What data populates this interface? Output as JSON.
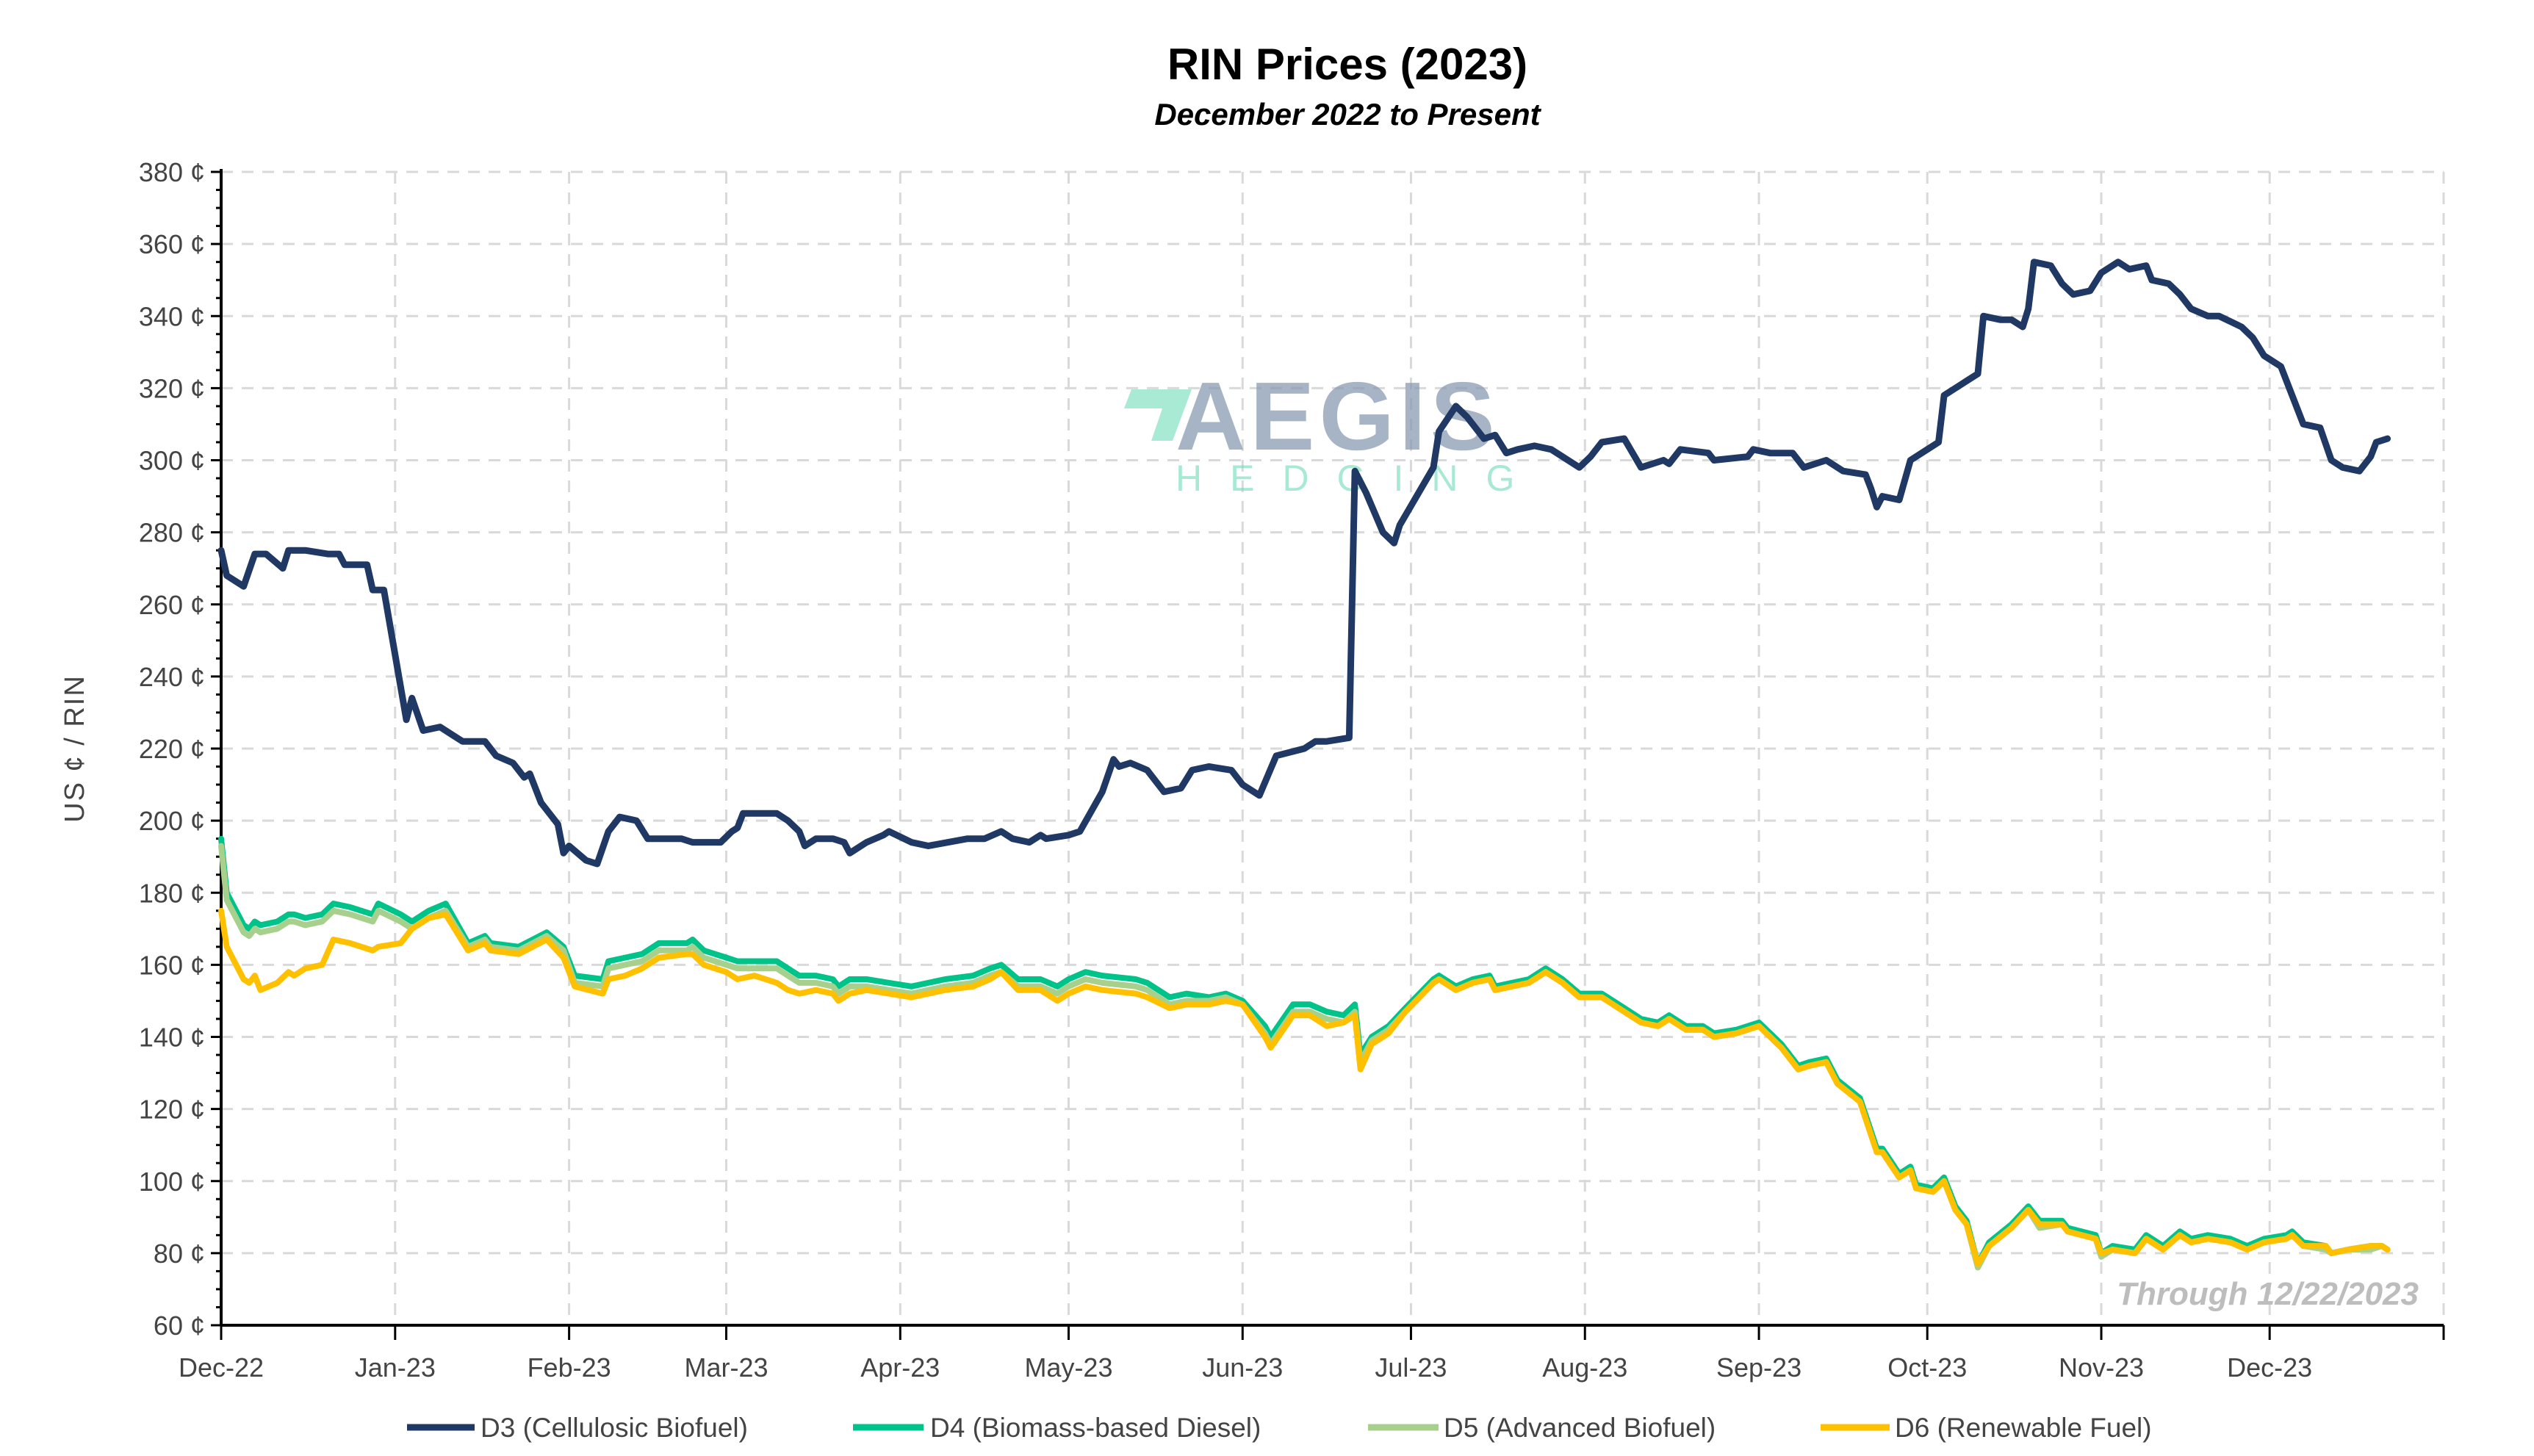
{
  "chart_data": {
    "type": "line",
    "title": "RIN Prices (2023)",
    "subtitle": "December 2022 to Present",
    "ylabel": "US ¢ / RIN",
    "xlabel": "",
    "note": "Through 12/22/2023",
    "xlim": [
      "2022-12-01",
      "2024-01-01"
    ],
    "ylim": [
      60,
      380
    ],
    "y_ticks": [
      60,
      80,
      100,
      120,
      140,
      160,
      180,
      200,
      220,
      240,
      260,
      280,
      300,
      320,
      340,
      360,
      380
    ],
    "y_tick_labels": [
      "60 ¢",
      "80 ¢",
      "100 ¢",
      "120 ¢",
      "140 ¢",
      "160 ¢",
      "180 ¢",
      "200 ¢",
      "220 ¢",
      "240 ¢",
      "260 ¢",
      "280 ¢",
      "300 ¢",
      "320 ¢",
      "340 ¢",
      "360 ¢",
      "380 ¢"
    ],
    "x_ticks": [
      "2022-12-01",
      "2023-01-01",
      "2023-02-01",
      "2023-03-01",
      "2023-04-01",
      "2023-05-01",
      "2023-06-01",
      "2023-07-01",
      "2023-08-01",
      "2023-09-01",
      "2023-10-01",
      "2023-11-01",
      "2023-12-01",
      "2024-01-01"
    ],
    "x_tick_labels": [
      "Dec-22",
      "Jan-23",
      "Feb-23",
      "Mar-23",
      "Apr-23",
      "May-23",
      "Jun-23",
      "Jul-23",
      "Aug-23",
      "Sep-23",
      "Oct-23",
      "Nov-23",
      "Dec-23",
      ""
    ],
    "grid": true,
    "legend_placement": "bottom",
    "watermark": {
      "text": "AEGIS",
      "sub": "HEDGING",
      "accent": "#6fdcb8"
    },
    "d3": {
      "name": "D3 (Cellulosic Biofuel)",
      "color": "#1f3864",
      "dates": [
        "2022-12-01",
        "2022-12-02",
        "2022-12-05",
        "2022-12-07",
        "2022-12-09",
        "2022-12-12",
        "2022-12-13",
        "2022-12-16",
        "2022-12-20",
        "2022-12-22",
        "2022-12-23",
        "2022-12-27",
        "2022-12-28",
        "2022-12-30",
        "2023-01-03",
        "2023-01-04",
        "2023-01-06",
        "2023-01-09",
        "2023-01-11",
        "2023-01-13",
        "2023-01-17",
        "2023-01-19",
        "2023-01-22",
        "2023-01-24",
        "2023-01-25",
        "2023-01-27",
        "2023-01-30",
        "2023-01-31",
        "2023-02-01",
        "2023-02-04",
        "2023-02-06",
        "2023-02-08",
        "2023-02-10",
        "2023-02-13",
        "2023-02-15",
        "2023-02-21",
        "2023-02-23",
        "2023-02-28",
        "2023-03-02",
        "2023-03-03",
        "2023-03-04",
        "2023-03-10",
        "2023-03-12",
        "2023-03-14",
        "2023-03-15",
        "2023-03-17",
        "2023-03-20",
        "2023-03-22",
        "2023-03-23",
        "2023-03-26",
        "2023-03-29",
        "2023-03-30",
        "2023-04-03",
        "2023-04-06",
        "2023-04-13",
        "2023-04-16",
        "2023-04-19",
        "2023-04-21",
        "2023-04-24",
        "2023-04-26",
        "2023-04-27",
        "2023-05-01",
        "2023-05-03",
        "2023-05-07",
        "2023-05-09",
        "2023-05-10",
        "2023-05-12",
        "2023-05-15",
        "2023-05-18",
        "2023-05-21",
        "2023-05-23",
        "2023-05-26",
        "2023-05-30",
        "2023-06-01",
        "2023-06-04",
        "2023-06-07",
        "2023-06-12",
        "2023-06-14",
        "2023-06-16",
        "2023-06-20",
        "2023-06-21",
        "2023-06-23",
        "2023-06-26",
        "2023-06-28",
        "2023-06-29",
        "2023-07-05",
        "2023-07-06",
        "2023-07-09",
        "2023-07-11",
        "2023-07-14",
        "2023-07-16",
        "2023-07-18",
        "2023-07-20",
        "2023-07-23",
        "2023-07-26",
        "2023-07-31",
        "2023-08-02",
        "2023-08-04",
        "2023-08-08",
        "2023-08-11",
        "2023-08-15",
        "2023-08-16",
        "2023-08-18",
        "2023-08-23",
        "2023-08-24",
        "2023-08-30",
        "2023-08-31",
        "2023-09-03",
        "2023-09-07",
        "2023-09-09",
        "2023-09-13",
        "2023-09-16",
        "2023-09-20",
        "2023-09-21",
        "2023-09-22",
        "2023-09-23",
        "2023-09-26",
        "2023-09-28",
        "2023-10-01",
        "2023-10-03",
        "2023-10-04",
        "2023-10-08",
        "2023-10-10",
        "2023-10-11",
        "2023-10-14",
        "2023-10-16",
        "2023-10-18",
        "2023-10-19",
        "2023-10-20",
        "2023-10-23",
        "2023-10-25",
        "2023-10-27",
        "2023-10-30",
        "2023-11-01",
        "2023-11-04",
        "2023-11-06",
        "2023-11-09",
        "2023-11-10",
        "2023-11-13",
        "2023-11-15",
        "2023-11-17",
        "2023-11-20",
        "2023-11-22",
        "2023-11-26",
        "2023-11-28",
        "2023-11-30",
        "2023-12-03",
        "2023-12-07",
        "2023-12-10",
        "2023-12-12",
        "2023-12-14",
        "2023-12-17",
        "2023-12-19",
        "2023-12-20",
        "2023-12-22"
      ],
      "values": [
        275,
        268,
        265,
        274,
        274,
        270,
        275,
        275,
        274,
        274,
        271,
        271,
        264,
        264,
        228,
        234,
        225,
        226,
        224,
        222,
        222,
        218,
        216,
        212,
        213,
        205,
        199,
        191,
        193,
        189,
        188,
        197,
        201,
        200,
        195,
        195,
        194,
        194,
        197,
        198,
        202,
        202,
        200,
        197,
        193,
        195,
        195,
        194,
        191,
        194,
        196,
        197,
        194,
        193,
        195,
        195,
        197,
        195,
        194,
        196,
        195,
        196,
        197,
        208,
        217,
        215,
        216,
        214,
        208,
        209,
        214,
        215,
        214,
        210,
        207,
        218,
        220,
        222,
        222,
        223,
        297,
        291,
        280,
        277,
        282,
        298,
        308,
        315,
        312,
        306,
        307,
        302,
        303,
        304,
        303,
        298,
        301,
        305,
        306,
        298,
        300,
        299,
        303,
        302,
        300,
        301,
        303,
        302,
        302,
        298,
        300,
        297,
        296,
        292,
        287,
        290,
        289,
        300,
        303,
        305,
        318,
        322,
        324,
        340,
        339,
        339,
        337,
        342,
        355,
        354,
        349,
        346,
        347,
        352,
        355,
        353,
        354,
        350,
        349,
        346,
        342,
        340,
        340,
        337,
        334,
        329,
        326,
        310,
        309,
        300,
        298,
        297,
        301,
        305,
        306
      ]
    },
    "lower_dates": [
      "2022-12-01",
      "2022-12-02",
      "2022-12-05",
      "2022-12-06",
      "2022-12-07",
      "2022-12-08",
      "2022-12-11",
      "2022-12-13",
      "2022-12-14",
      "2022-12-16",
      "2022-12-19",
      "2022-12-21",
      "2022-12-24",
      "2022-12-28",
      "2022-12-29",
      "2023-01-02",
      "2023-01-04",
      "2023-01-07",
      "2023-01-10",
      "2023-01-14",
      "2023-01-17",
      "2023-01-18",
      "2023-01-23",
      "2023-01-28",
      "2023-01-31",
      "2023-02-02",
      "2023-02-07",
      "2023-02-08",
      "2023-02-11",
      "2023-02-14",
      "2023-02-17",
      "2023-02-22",
      "2023-02-23",
      "2023-02-25",
      "2023-03-01",
      "2023-03-03",
      "2023-03-06",
      "2023-03-10",
      "2023-03-12",
      "2023-03-14",
      "2023-03-17",
      "2023-03-20",
      "2023-03-21",
      "2023-03-23",
      "2023-03-26",
      "2023-03-30",
      "2023-04-03",
      "2023-04-06",
      "2023-04-09",
      "2023-04-14",
      "2023-04-17",
      "2023-04-19",
      "2023-04-22",
      "2023-04-26",
      "2023-04-29",
      "2023-05-01",
      "2023-05-04",
      "2023-05-07",
      "2023-05-13",
      "2023-05-15",
      "2023-05-19",
      "2023-05-22",
      "2023-05-26",
      "2023-05-29",
      "2023-06-01",
      "2023-06-05",
      "2023-06-06",
      "2023-06-10",
      "2023-06-13",
      "2023-06-16",
      "2023-06-19",
      "2023-06-21",
      "2023-06-22",
      "2023-06-24",
      "2023-06-27",
      "2023-06-30",
      "2023-07-05",
      "2023-07-06",
      "2023-07-09",
      "2023-07-12",
      "2023-07-15",
      "2023-07-16",
      "2023-07-19",
      "2023-07-22",
      "2023-07-25",
      "2023-07-28",
      "2023-07-31",
      "2023-08-04",
      "2023-08-07",
      "2023-08-11",
      "2023-08-14",
      "2023-08-16",
      "2023-08-19",
      "2023-08-22",
      "2023-08-24",
      "2023-08-28",
      "2023-09-01",
      "2023-09-05",
      "2023-09-08",
      "2023-09-10",
      "2023-09-13",
      "2023-09-15",
      "2023-09-19",
      "2023-09-22",
      "2023-09-23",
      "2023-09-26",
      "2023-09-28",
      "2023-09-29",
      "2023-10-02",
      "2023-10-04",
      "2023-10-06",
      "2023-10-08",
      "2023-10-10",
      "2023-10-12",
      "2023-10-16",
      "2023-10-19",
      "2023-10-21",
      "2023-10-25",
      "2023-10-26",
      "2023-10-31",
      "2023-11-01",
      "2023-11-03",
      "2023-11-07",
      "2023-11-09",
      "2023-11-12",
      "2023-11-15",
      "2023-11-17",
      "2023-11-20",
      "2023-11-24",
      "2023-11-27",
      "2023-11-30",
      "2023-12-04",
      "2023-12-05",
      "2023-12-07",
      "2023-12-11",
      "2023-12-12",
      "2023-12-15",
      "2023-12-19",
      "2023-12-21",
      "2023-12-22"
    ],
    "d4": {
      "name": "D4 (Biomass-based Diesel)",
      "color": "#00c389",
      "values": [
        195,
        180,
        171,
        170,
        172,
        171,
        172,
        174,
        174,
        173,
        174,
        177,
        176,
        174,
        177,
        174,
        172,
        175,
        177,
        166,
        168,
        166,
        165,
        169,
        165,
        157,
        156,
        161,
        162,
        163,
        166,
        166,
        167,
        164,
        162,
        161,
        161,
        161,
        159,
        157,
        157,
        156,
        154,
        156,
        156,
        155,
        154,
        155,
        156,
        157,
        159,
        160,
        156,
        156,
        154,
        156,
        158,
        157,
        156,
        155,
        151,
        152,
        151,
        152,
        150,
        143,
        140,
        149,
        149,
        147,
        146,
        149,
        135,
        140,
        143,
        148,
        156,
        157,
        154,
        156,
        157,
        154,
        155,
        156,
        159,
        156,
        152,
        152,
        149,
        145,
        144,
        146,
        143,
        143,
        141,
        142,
        144,
        138,
        132,
        133,
        134,
        128,
        123,
        109,
        109,
        102,
        104,
        99,
        98,
        101,
        93,
        89,
        77,
        83,
        88,
        93,
        89,
        89,
        87,
        85,
        80,
        82,
        81,
        85,
        82,
        86,
        84,
        85,
        84,
        82,
        84,
        85,
        86,
        83,
        82,
        80,
        81,
        82,
        82,
        81
      ]
    },
    "d5": {
      "name": "D5 (Advanced Biofuel)",
      "color": "#a8d08d",
      "values": [
        193,
        178,
        169,
        168,
        170,
        169,
        170,
        172,
        172,
        171,
        172,
        175,
        174,
        172,
        175,
        172,
        170,
        173,
        175,
        165,
        167,
        165,
        164,
        168,
        164,
        155,
        154,
        159,
        160,
        161,
        164,
        164,
        165,
        162,
        160,
        159,
        159,
        159,
        157,
        155,
        155,
        154,
        152,
        154,
        154,
        153,
        152,
        153,
        154,
        155,
        157,
        158,
        154,
        154,
        152,
        154,
        156,
        155,
        154,
        153,
        149,
        150,
        150,
        151,
        149,
        141,
        138,
        147,
        147,
        145,
        144,
        147,
        133,
        139,
        142,
        147,
        155,
        156,
        153,
        155,
        156,
        153,
        154,
        155,
        158,
        155,
        151,
        151,
        148,
        144,
        143,
        145,
        142,
        142,
        140,
        141,
        143,
        137,
        131,
        132,
        133,
        127,
        122,
        108,
        108,
        101,
        103,
        98,
        97,
        100,
        92,
        88,
        76,
        82,
        87,
        92,
        87,
        88,
        86,
        84,
        79,
        81,
        80,
        84,
        81,
        85,
        83,
        84,
        83,
        81,
        83,
        84,
        85,
        82,
        81,
        80,
        81,
        81,
        82,
        81
      ]
    },
    "d6": {
      "name": "D6 (Renewable Fuel)",
      "color": "#ffc000",
      "values": [
        175,
        165,
        156,
        155,
        157,
        153,
        155,
        158,
        157,
        159,
        160,
        167,
        166,
        164,
        165,
        166,
        170,
        173,
        174,
        164,
        166,
        164,
        163,
        167,
        162,
        154,
        152,
        156,
        157,
        159,
        162,
        163,
        163,
        160,
        158,
        156,
        157,
        155,
        153,
        152,
        153,
        152,
        150,
        152,
        153,
        152,
        151,
        152,
        153,
        154,
        156,
        158,
        153,
        153,
        150,
        152,
        154,
        153,
        152,
        151,
        148,
        149,
        149,
        150,
        149,
        140,
        137,
        146,
        146,
        143,
        144,
        146,
        131,
        138,
        141,
        147,
        155,
        156,
        153,
        155,
        156,
        153,
        154,
        155,
        158,
        155,
        151,
        151,
        148,
        144,
        143,
        145,
        142,
        142,
        140,
        141,
        143,
        137,
        131,
        132,
        133,
        127,
        122,
        108,
        108,
        101,
        103,
        98,
        97,
        100,
        92,
        88,
        77,
        82,
        87,
        92,
        88,
        88,
        86,
        84,
        80,
        81,
        80,
        84,
        81,
        85,
        83,
        84,
        83,
        81,
        83,
        84,
        85,
        82,
        82,
        80,
        81,
        82,
        82,
        81
      ]
    }
  }
}
